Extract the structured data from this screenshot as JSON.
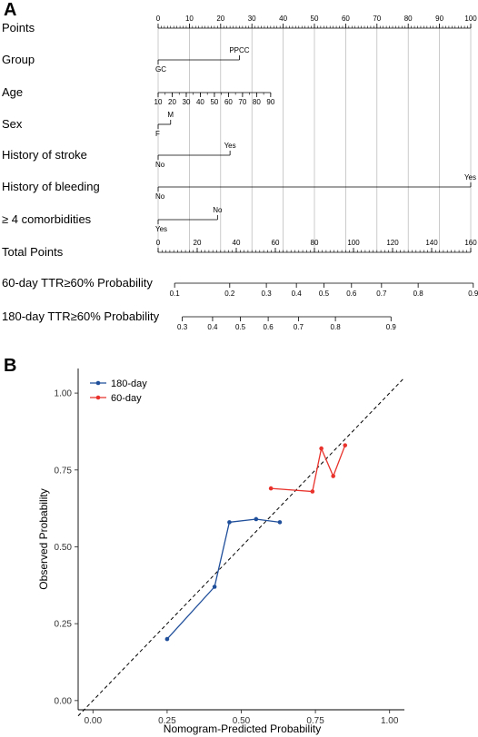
{
  "panel_a": {
    "letter": "A"
  },
  "panel_b": {
    "letter": "B"
  },
  "chart_data": [
    {
      "type": "nomogram",
      "rows": [
        {
          "label": "Points",
          "kind": "axis",
          "min": 0,
          "max": 100,
          "ticks": [
            0,
            10,
            20,
            30,
            40,
            50,
            60,
            70,
            80,
            90,
            100
          ],
          "minor": 1
        },
        {
          "label": "Group",
          "kind": "factor",
          "levels": [
            {
              "text": "GC",
              "points": 0,
              "side": "below"
            },
            {
              "text": "PPCC",
              "points": 26,
              "side": "above"
            }
          ]
        },
        {
          "label": "Age",
          "kind": "scale",
          "points_range": [
            0,
            36
          ],
          "ticks": [
            10,
            20,
            30,
            40,
            50,
            60,
            70,
            80,
            90
          ],
          "minor": 5
        },
        {
          "label": "Sex",
          "kind": "factor",
          "levels": [
            {
              "text": "F",
              "points": 0,
              "side": "below"
            },
            {
              "text": "M",
              "points": 4,
              "side": "above"
            }
          ]
        },
        {
          "label": "History of stroke",
          "kind": "factor",
          "levels": [
            {
              "text": "No",
              "points": 0,
              "side": "below"
            },
            {
              "text": "Yes",
              "points": 23,
              "side": "above"
            }
          ]
        },
        {
          "label": "History of bleeding",
          "kind": "factor",
          "levels": [
            {
              "text": "No",
              "points": 0,
              "side": "below"
            },
            {
              "text": "Yes",
              "points": 100,
              "side": "above"
            }
          ]
        },
        {
          "label": "≥ 4 comorbidities",
          "kind": "factor",
          "levels": [
            {
              "text": "Yes",
              "points": 0,
              "side": "below"
            },
            {
              "text": "No",
              "points": 19,
              "side": "above"
            }
          ]
        },
        {
          "label": "Total Points",
          "kind": "axis",
          "min": 0,
          "max": 160,
          "ticks": [
            0,
            20,
            40,
            60,
            80,
            100,
            120,
            140,
            160
          ],
          "minor": 2
        },
        {
          "label": "60-day TTR≥60% Probability",
          "kind": "prob",
          "probs": [
            0.1,
            0.2,
            0.3,
            0.4,
            0.5,
            0.6,
            0.7,
            0.8,
            0.9
          ],
          "intercept": -2.44,
          "slope": 0.02875
        },
        {
          "label": "180-day TTR≥60% Probability",
          "kind": "prob",
          "probs": [
            0.3,
            0.4,
            0.5,
            0.6,
            0.7,
            0.8,
            0.9
          ],
          "intercept": -1.2,
          "slope": 0.0285
        }
      ]
    },
    {
      "type": "line",
      "xlabel": "Nomogram-Predicted Probability",
      "ylabel": "Observed Probability",
      "xlim": [
        -0.05,
        1.05
      ],
      "ylim": [
        -0.03,
        1.08
      ],
      "xticks": [
        "0.00",
        "0.25",
        "0.50",
        "0.75",
        "1.00"
      ],
      "yticks": [
        "0.00",
        "0.25",
        "0.50",
        "0.75",
        "1.00"
      ],
      "reference_line": "y = x (dashed)",
      "grid": false,
      "legend_position": "top-left",
      "series": [
        {
          "name": "180-day",
          "color": "#1f4e9a",
          "x": [
            0.25,
            0.41,
            0.46,
            0.55,
            0.63
          ],
          "y": [
            0.2,
            0.37,
            0.58,
            0.59,
            0.58
          ]
        },
        {
          "name": "60-day",
          "color": "#e8322b",
          "x": [
            0.6,
            0.74,
            0.77,
            0.81,
            0.85
          ],
          "y": [
            0.69,
            0.68,
            0.82,
            0.73,
            0.83
          ]
        }
      ]
    }
  ]
}
